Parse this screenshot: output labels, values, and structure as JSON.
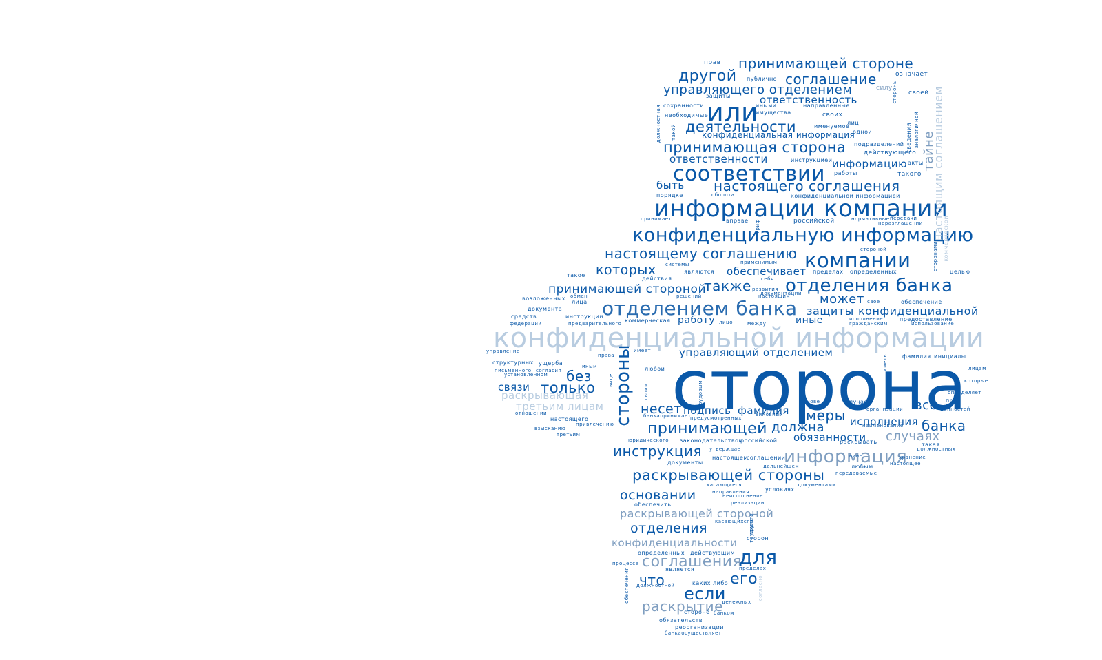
{
  "colors": {
    "dark": "#0a58a8",
    "medium": "#7f9ec0",
    "light": "#b8cce0",
    "background": "#ffffff"
  },
  "words": [
    "сторона",
    "конфиденциальной информации",
    "информации компании",
    "конфиденциальную информацию",
    "или",
    "соответствии",
    "отделением банка",
    "компании",
    "отделения банка",
    "стороны",
    "информация",
    "для",
    "принимающей стороне",
    "другой",
    "соглашение",
    "управляющего отделением",
    "ответственность",
    "деятельности",
    "принимающая сторона",
    "ответственности",
    "настоящего соглашения",
    "быть",
    "информацию",
    "настоящему соглашению",
    "которых",
    "также",
    "принимающей стороной",
    "может",
    "защиты",
    "конфиденциальной",
    "работу",
    "иные",
    "управляющий отделением",
    "без",
    "только",
    "связи",
    "раскрывающая",
    "третьим лицам",
    "несет",
    "подпись",
    "фамилия",
    "меры",
    "принимающей",
    "должна",
    "банка",
    "исполнения",
    "случаях",
    "обязанности",
    "инструкция",
    "раскрывающей стороны",
    "основании",
    "раскрывающей стороной",
    "отделения",
    "конфиденциальности",
    "соглашения",
    "что",
    "его",
    "если",
    "раскрытие",
    "обеспечивает",
    "все",
    "тайне",
    "настоящим соглашением",
    "конфиденциальная информация",
    "прав",
    "публично",
    "означает",
    "силу",
    "своей",
    "защиты",
    "сохранности",
    "иными",
    "имущества",
    "направленные",
    "необходимые",
    "своих",
    "лиц",
    "именуемое",
    "одной",
    "подразделений",
    "действующего",
    "сведения",
    "инструкцией",
    "акты",
    "работы",
    "такого",
    "порядке",
    "оборота",
    "конфиденциальной информацией",
    "принимает",
    "вправе",
    "российской",
    "нормативные",
    "передачи",
    "неразглашении",
    "стороной",
    "системы",
    "применимым",
    "являются",
    "пределах",
    "определенных",
    "целью",
    "такое",
    "действия",
    "себя",
    "развития",
    "настоящим",
    "документации",
    "решений",
    "обмен",
    "лица",
    "свое",
    "обеспечение",
    "возложенных",
    "документа",
    "средств",
    "инструкции",
    "исполнение",
    "гражданским",
    "предоставление",
    "использование",
    "федерации",
    "предварительного",
    "коммерческая",
    "лицо",
    "между",
    "управление",
    "права",
    "имеет",
    "структурных",
    "ущерба",
    "иным",
    "фамилия",
    "инициалы",
    "письменного",
    "согласия",
    "установленном",
    "любой",
    "лицам",
    "которые",
    "определяет",
    "при",
    "ценностей",
    "своим",
    "основе",
    "случаев",
    "организации",
    "отношении",
    "настоящего",
    "привлечению",
    "банкапринимает",
    "предусмотренных",
    "виновных",
    "наименование",
    "взысканию",
    "третьим",
    "юридического",
    "законодательством",
    "российской",
    "раскрывать",
    "такая",
    "должностных",
    "утверждает",
    "настоящем",
    "соглашении",
    "хранение",
    "документы",
    "дальнейшем",
    "любым",
    "настоящее",
    "передаваемые",
    "касающиеся",
    "документами",
    "направления",
    "неисполнение",
    "условиях",
    "обеспечить",
    "реализации",
    "касающихся",
    "трудового",
    "стороне",
    "определенных",
    "действующим",
    "процессе",
    "является",
    "пределах",
    "каких",
    "либо",
    "должностной",
    "денежных",
    "банком",
    "обязательств",
    "реорганизации",
    "банкаосуществляет",
    "вине",
    "трудовым",
    "трупа",
    "сторон",
    "гриф",
    "виде",
    "иметь",
    "должностная",
    "такой",
    "аналогичной",
    "коммерческой",
    "стороны",
    "сторонами",
    "обеспечения",
    "согласно"
  ]
}
